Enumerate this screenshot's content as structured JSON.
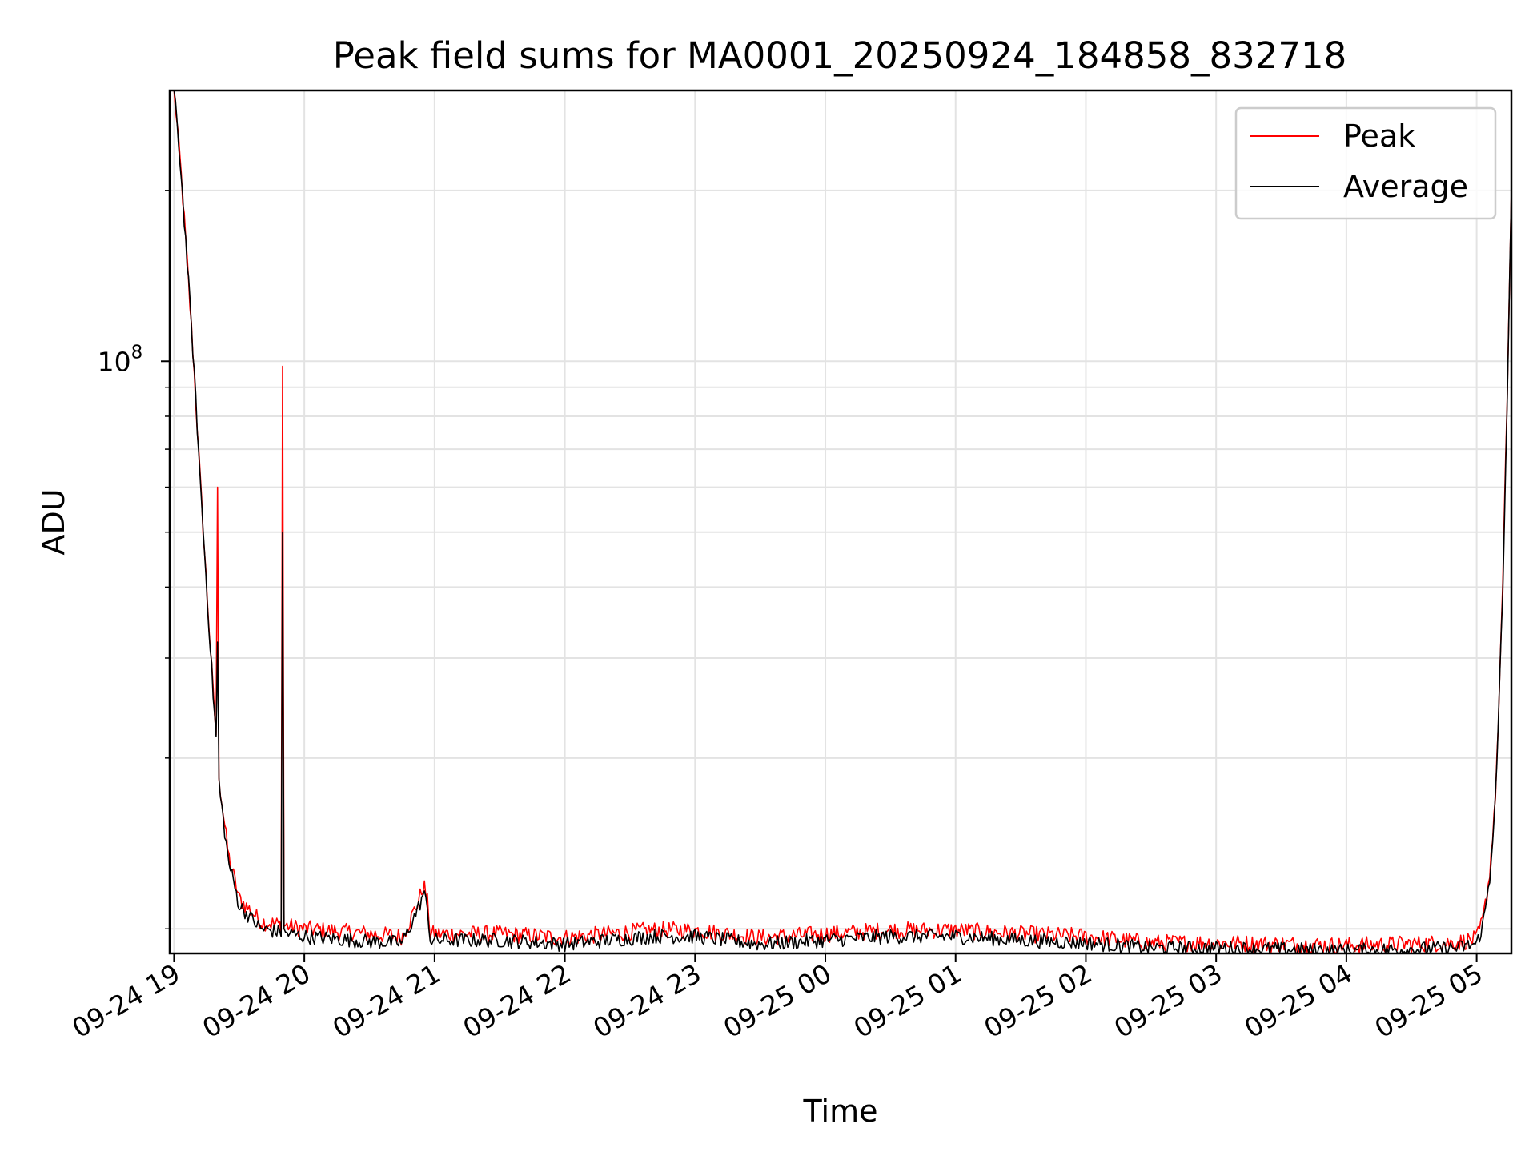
{
  "chart_data": {
    "type": "line",
    "title": "Peak field sums for MA0001_20250924_184858_832718",
    "xlabel": "Time",
    "ylabel": "ADU",
    "y_scale": "log",
    "ylim": [
      9050000,
      300000000
    ],
    "xlim": [
      "2025-09-24 18:58",
      "2025-09-25 05:16"
    ],
    "x_ticks": [
      {
        "value": "2025-09-24 19:00",
        "label": "09-24 19"
      },
      {
        "value": "2025-09-24 20:00",
        "label": "09-24 20"
      },
      {
        "value": "2025-09-24 21:00",
        "label": "09-24 21"
      },
      {
        "value": "2025-09-24 22:00",
        "label": "09-24 22"
      },
      {
        "value": "2025-09-24 23:00",
        "label": "09-24 23"
      },
      {
        "value": "2025-09-25 00:00",
        "label": "09-25 00"
      },
      {
        "value": "2025-09-25 01:00",
        "label": "09-25 01"
      },
      {
        "value": "2025-09-25 02:00",
        "label": "09-25 02"
      },
      {
        "value": "2025-09-25 03:00",
        "label": "09-25 03"
      },
      {
        "value": "2025-09-25 04:00",
        "label": "09-25 04"
      },
      {
        "value": "2025-09-25 05:00",
        "label": "09-25 05"
      }
    ],
    "y_ticks": [
      {
        "value": 100000000,
        "base": "10",
        "exp": "8"
      }
    ],
    "y_minor_ticks": [
      10000000,
      20000000,
      30000000,
      40000000,
      50000000,
      60000000,
      70000000,
      80000000,
      90000000,
      200000000
    ],
    "grid": true,
    "legend_position": "top-right",
    "series": [
      {
        "name": "Peak",
        "color": "#ff0000",
        "noise": 0.035,
        "points": [
          [
            "2025-09-24 19:00",
            300000000
          ],
          [
            "2025-09-24 19:03",
            220000000
          ],
          [
            "2025-09-24 19:06",
            150000000
          ],
          [
            "2025-09-24 19:09",
            100000000
          ],
          [
            "2025-09-24 19:12",
            62000000
          ],
          [
            "2025-09-24 19:15",
            40000000
          ],
          [
            "2025-09-24 19:18",
            26000000
          ],
          [
            "2025-09-24 19:21",
            18000000
          ],
          [
            "2025-09-24 19:25",
            13500000
          ],
          [
            "2025-09-24 19:30",
            11300000
          ],
          [
            "2025-09-24 19:40",
            10300000
          ],
          [
            "2025-09-24 20:00",
            10000000
          ],
          [
            "2025-09-24 20:30",
            9800000
          ],
          [
            "2025-09-24 20:45",
            9700000
          ],
          [
            "2025-09-24 20:48",
            10200000
          ],
          [
            "2025-09-24 20:53",
            11300000
          ],
          [
            "2025-09-24 20:55",
            12000000
          ],
          [
            "2025-09-24 20:57",
            11000000
          ],
          [
            "2025-09-24 20:58",
            9800000
          ],
          [
            "2025-09-24 21:30",
            9800000
          ],
          [
            "2025-09-24 22:00",
            9650000
          ],
          [
            "2025-09-24 22:40",
            9950000
          ],
          [
            "2025-09-24 23:00",
            9950000
          ],
          [
            "2025-09-24 23:30",
            9650000
          ],
          [
            "2025-09-25 00:00",
            9800000
          ],
          [
            "2025-09-25 00:30",
            9950000
          ],
          [
            "2025-09-25 01:00",
            9950000
          ],
          [
            "2025-09-25 01:30",
            9800000
          ],
          [
            "2025-09-25 02:00",
            9700000
          ],
          [
            "2025-09-25 02:30",
            9450000
          ],
          [
            "2025-09-25 03:00",
            9450000
          ],
          [
            "2025-09-25 03:30",
            9400000
          ],
          [
            "2025-09-25 04:00",
            9350000
          ],
          [
            "2025-09-25 04:50",
            9450000
          ],
          [
            "2025-09-25 05:00",
            9600000
          ],
          [
            "2025-09-25 05:03",
            10400000
          ],
          [
            "2025-09-25 05:06",
            12500000
          ],
          [
            "2025-09-25 05:09",
            18000000
          ],
          [
            "2025-09-25 05:12",
            40000000
          ],
          [
            "2025-09-25 05:14",
            85000000
          ],
          [
            "2025-09-25 05:16",
            200000000
          ]
        ],
        "spikes": [
          [
            "2025-09-24 19:20",
            60000000
          ],
          [
            "2025-09-24 19:25",
            26500000
          ],
          [
            "2025-09-24 19:50",
            98000000
          ]
        ]
      },
      {
        "name": "Average",
        "color": "#000000",
        "noise": 0.03,
        "points": [
          [
            "2025-09-24 19:00",
            300000000
          ],
          [
            "2025-09-24 19:03",
            220000000
          ],
          [
            "2025-09-24 19:06",
            150000000
          ],
          [
            "2025-09-24 19:09",
            100000000
          ],
          [
            "2025-09-24 19:12",
            62000000
          ],
          [
            "2025-09-24 19:15",
            40000000
          ],
          [
            "2025-09-24 19:18",
            26000000
          ],
          [
            "2025-09-24 19:21",
            17500000
          ],
          [
            "2025-09-24 19:25",
            13200000
          ],
          [
            "2025-09-24 19:30",
            11000000
          ],
          [
            "2025-09-24 19:40",
            10000000
          ],
          [
            "2025-09-24 20:00",
            9700000
          ],
          [
            "2025-09-24 20:30",
            9500000
          ],
          [
            "2025-09-24 20:45",
            9450000
          ],
          [
            "2025-09-24 20:48",
            9950000
          ],
          [
            "2025-09-24 20:53",
            11000000
          ],
          [
            "2025-09-24 20:55",
            11600000
          ],
          [
            "2025-09-24 20:57",
            10700000
          ],
          [
            "2025-09-24 20:58",
            9550000
          ],
          [
            "2025-09-24 21:30",
            9550000
          ],
          [
            "2025-09-24 22:00",
            9400000
          ],
          [
            "2025-09-24 22:40",
            9700000
          ],
          [
            "2025-09-24 23:00",
            9700000
          ],
          [
            "2025-09-24 23:30",
            9400000
          ],
          [
            "2025-09-25 00:00",
            9550000
          ],
          [
            "2025-09-25 00:30",
            9700000
          ],
          [
            "2025-09-25 01:00",
            9700000
          ],
          [
            "2025-09-25 01:30",
            9550000
          ],
          [
            "2025-09-25 02:00",
            9450000
          ],
          [
            "2025-09-25 02:30",
            9250000
          ],
          [
            "2025-09-25 03:00",
            9250000
          ],
          [
            "2025-09-25 03:30",
            9200000
          ],
          [
            "2025-09-25 04:00",
            9150000
          ],
          [
            "2025-09-25 04:50",
            9250000
          ],
          [
            "2025-09-25 05:00",
            9400000
          ],
          [
            "2025-09-25 05:03",
            10200000
          ],
          [
            "2025-09-25 05:06",
            12300000
          ],
          [
            "2025-09-25 05:09",
            17800000
          ],
          [
            "2025-09-25 05:12",
            39000000
          ],
          [
            "2025-09-25 05:14",
            84000000
          ],
          [
            "2025-09-25 05:16",
            195000000
          ]
        ],
        "spikes": [
          [
            "2025-09-24 19:20",
            32000000
          ],
          [
            "2025-09-24 19:50",
            50000000
          ]
        ]
      }
    ]
  }
}
